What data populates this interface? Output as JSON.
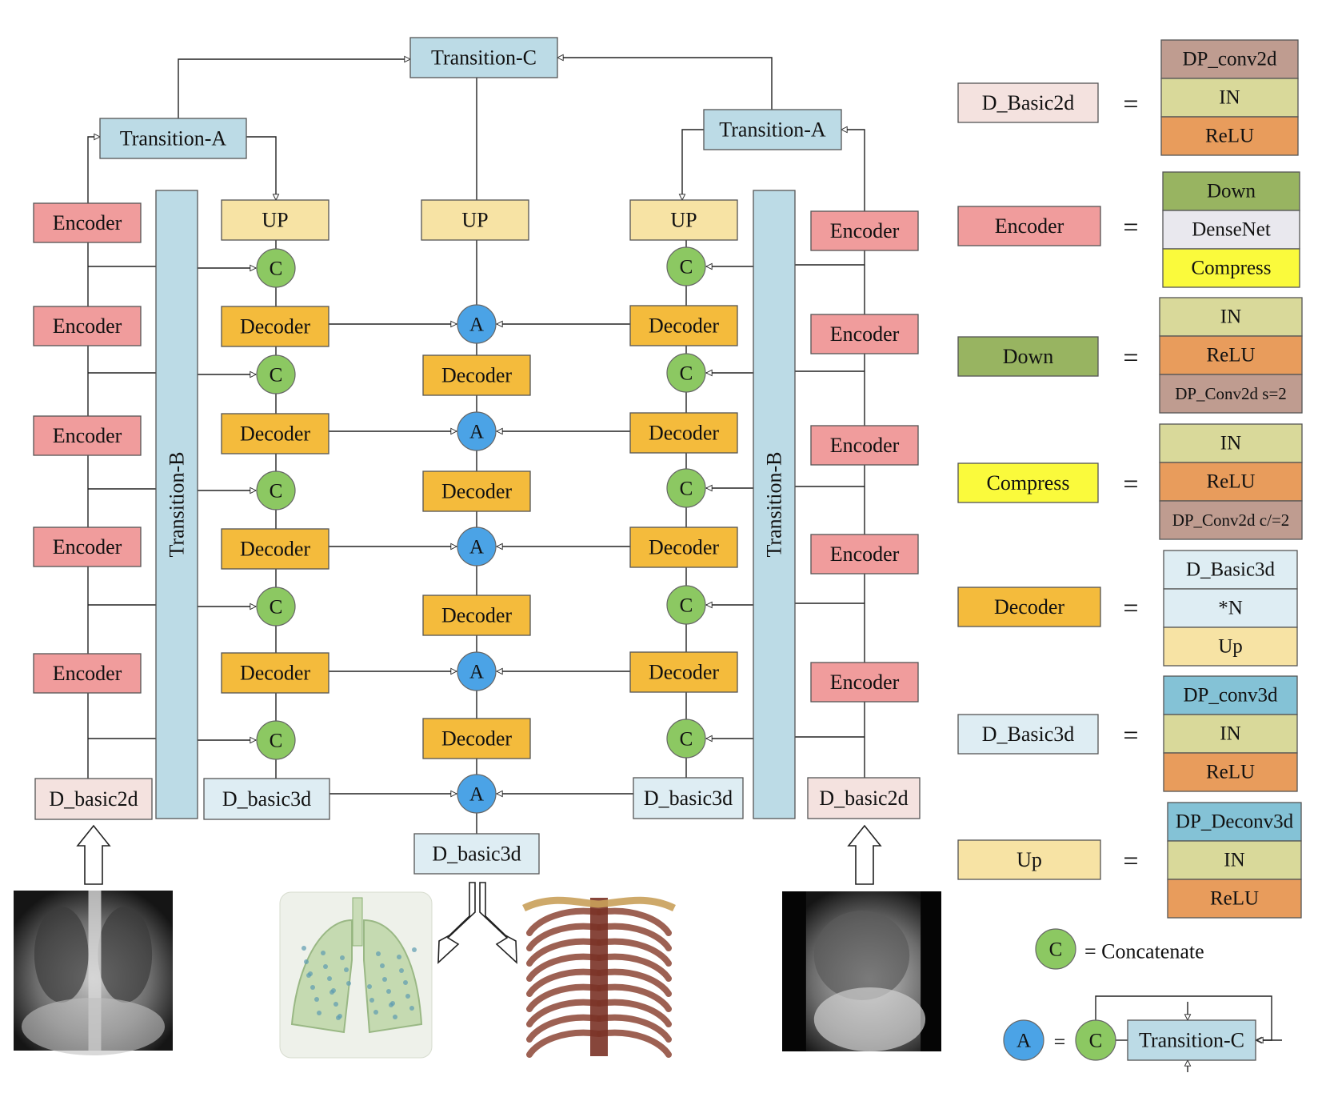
{
  "colors": {
    "transition": "#bcdbe6",
    "encoder": "#f09c9c",
    "decoder": "#f4bb3c",
    "up": "#f7e3a4",
    "basic2d": "#f4e2df",
    "basic3d": "#deedf3",
    "down": "#98b461",
    "densenet": "#e9e8ee",
    "compress": "#fafa3c",
    "in": "#d9d99a",
    "relu": "#e89c5c",
    "dpconv": "#bf9c90",
    "deconv": "#84c2d6",
    "concat_circle": "#8cc862",
    "add_circle": "#4ba3e6"
  },
  "labels": {
    "transition_c": "Transition-C",
    "transition_a": "Transition-A",
    "transition_b": "Transition-B",
    "encoder": "Encoder",
    "decoder": "Decoder",
    "up_caps": "UP",
    "concat": "C",
    "add": "A",
    "d_basic2d": "D_basic2d",
    "d_basic3d": "D_basic3d"
  },
  "legend": {
    "equals": "=",
    "rows": [
      {
        "name": "D_Basic2d",
        "color": "basic2d",
        "parts": [
          {
            "t": "DP_conv2d",
            "c": "dpconv"
          },
          {
            "t": "IN",
            "c": "in"
          },
          {
            "t": "ReLU",
            "c": "relu"
          }
        ]
      },
      {
        "name": "Encoder",
        "color": "encoder",
        "parts": [
          {
            "t": "Down",
            "c": "down"
          },
          {
            "t": "DenseNet",
            "c": "densenet"
          },
          {
            "t": "Compress",
            "c": "compress"
          }
        ]
      },
      {
        "name": "Down",
        "color": "down",
        "parts": [
          {
            "t": "IN",
            "c": "in"
          },
          {
            "t": "ReLU",
            "c": "relu"
          },
          {
            "t": "DP_Conv2d s=2",
            "c": "dpconv"
          }
        ]
      },
      {
        "name": "Compress",
        "color": "compress",
        "parts": [
          {
            "t": "IN",
            "c": "in"
          },
          {
            "t": "ReLU",
            "c": "relu"
          },
          {
            "t": "DP_Conv2d c/=2",
            "c": "dpconv"
          }
        ]
      },
      {
        "name": "Decoder",
        "color": "decoder",
        "parts": [
          {
            "t": "D_Basic3d",
            "c": "basic3d"
          },
          {
            "t": "*N",
            "c": "basic3d"
          },
          {
            "t": "Up",
            "c": "up"
          }
        ]
      },
      {
        "name": "D_Basic3d",
        "color": "basic3d",
        "parts": [
          {
            "t": "DP_conv3d",
            "c": "deconv"
          },
          {
            "t": "IN",
            "c": "in"
          },
          {
            "t": "ReLU",
            "c": "relu"
          }
        ]
      },
      {
        "name": "Up",
        "color": "up",
        "parts": [
          {
            "t": "DP_Deconv3d",
            "c": "deconv"
          },
          {
            "t": "IN",
            "c": "in"
          },
          {
            "t": "ReLU",
            "c": "relu"
          }
        ]
      }
    ],
    "concat_def": "= Concatenate",
    "add_def_equals": "=",
    "add_def_c": "C",
    "add_def_block": "Transition-C"
  }
}
